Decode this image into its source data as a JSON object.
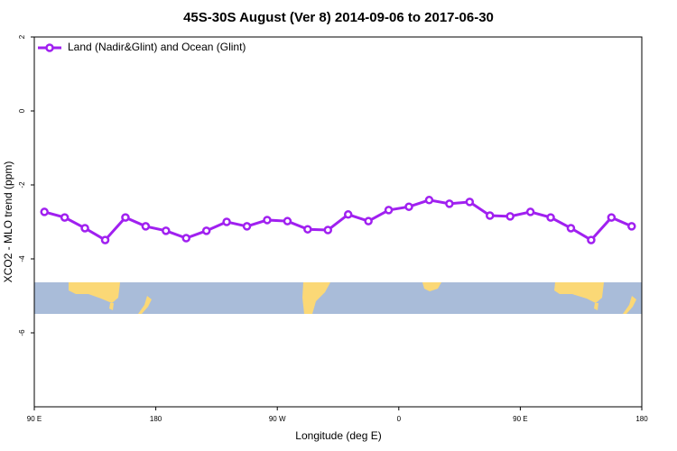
{
  "chart_data": {
    "type": "line",
    "title": "45S-30S August (Ver 8)   2014-09-06 to 2017-06-30",
    "x_label": "Longitude (deg E)",
    "y_label": "XCO2 - MLO trend (ppm)",
    "x": [
      97.5,
      112.5,
      127.5,
      142.5,
      157.5,
      172.5,
      187.5,
      202.5,
      217.5,
      232.5,
      247.5,
      262.5,
      277.5,
      292.5,
      307.5,
      322.5,
      337.5,
      352.5,
      367.5,
      382.5,
      397.5,
      412.5,
      427.5,
      442.5,
      457.5,
      472.5,
      487.5,
      502.5,
      517.5,
      532.5
    ],
    "series": [
      {
        "name": "Land (Nadir&Glint) and Ocean (Glint)",
        "color": "#a020f0",
        "values": [
          -2.73,
          -2.88,
          -3.17,
          -3.49,
          -2.88,
          -3.12,
          -3.24,
          -3.44,
          -3.24,
          -3.0,
          -3.12,
          -2.95,
          -2.98,
          -3.2,
          -3.22,
          -2.8,
          -2.98,
          -2.68,
          -2.59,
          -2.41,
          -2.51,
          -2.46,
          -2.83,
          -2.85,
          -2.73,
          -2.88,
          -3.17,
          -3.49,
          -2.88,
          -3.12
        ]
      }
    ],
    "xlim": [
      90,
      540
    ],
    "xticks": [
      {
        "value": 90,
        "label": "90 E"
      },
      180,
      {
        "value": 270,
        "label": "90 W"
      },
      {
        "value": 360,
        "label": "0"
      },
      {
        "value": 450,
        "label": "90 E"
      },
      {
        "value": 540,
        "label": "180"
      }
    ],
    "ylim": [
      -8,
      2
    ],
    "yticks": [
      2,
      0,
      -2,
      -4,
      -6
    ],
    "legend": "top-left"
  }
}
